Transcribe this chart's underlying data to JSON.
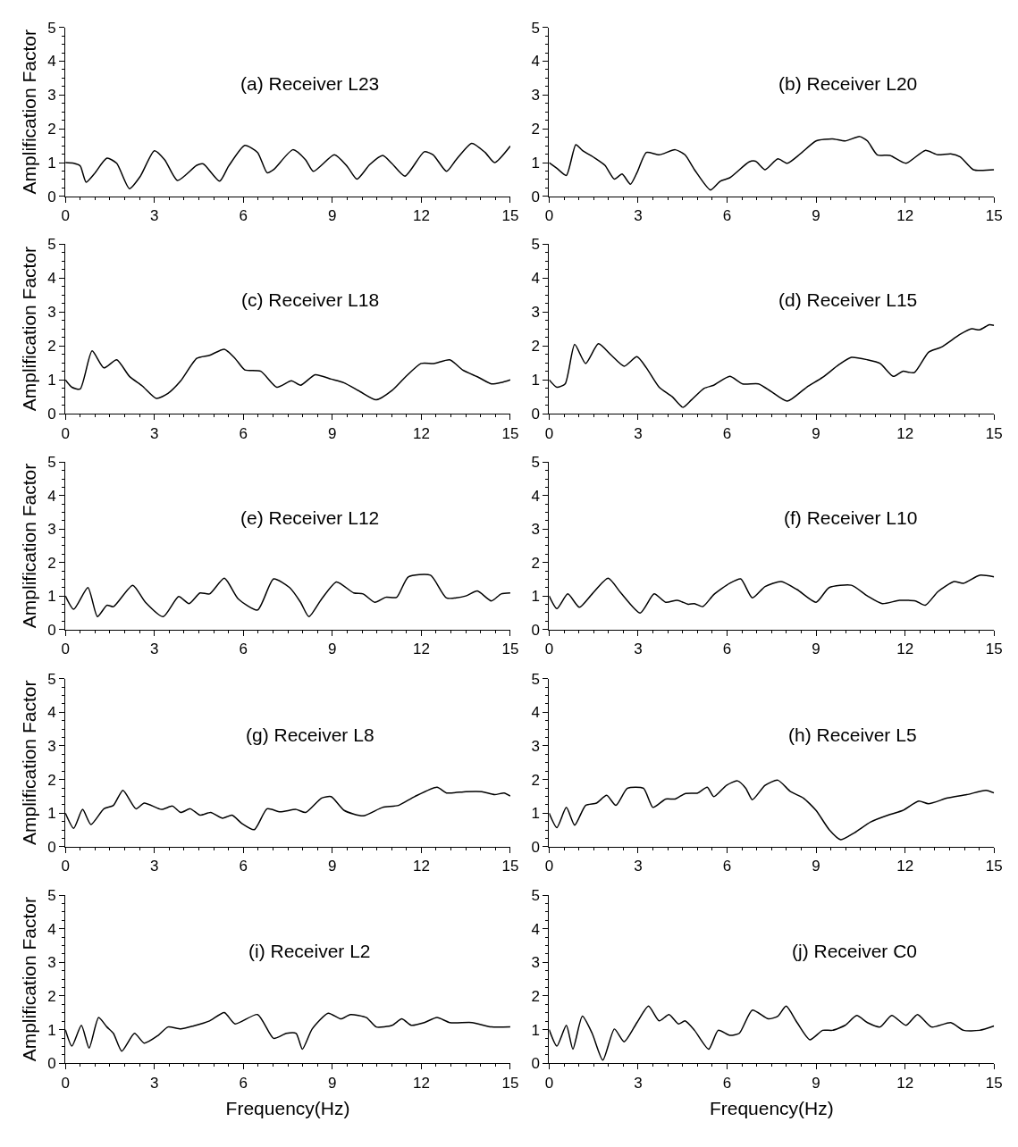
{
  "chart_data": [
    {
      "type": "line",
      "title": "(a) Receiver L23",
      "ylabel": "Amplification Factor",
      "color": "#000000",
      "xlim": [
        0,
        15
      ],
      "xticks": [
        0,
        3,
        6,
        9,
        12,
        15
      ],
      "ylim": [
        0,
        5
      ],
      "yticks": [
        0,
        1,
        2,
        3,
        4,
        5
      ],
      "x": [
        0,
        0.28,
        0.5,
        0.7,
        0.97,
        1.4,
        1.73,
        2.16,
        2.53,
        3.0,
        3.35,
        3.78,
        4.43,
        4.65,
        5.2,
        5.5,
        6.05,
        6.48,
        6.8,
        7.02,
        7.67,
        8.1,
        8.36,
        9.07,
        9.5,
        9.83,
        10.26,
        10.7,
        11.0,
        11.45,
        12.1,
        12.4,
        12.85,
        13.17,
        13.7,
        14.15,
        14.47,
        15
      ],
      "values": [
        1.0,
        0.98,
        0.9,
        0.42,
        0.66,
        1.13,
        0.98,
        0.23,
        0.6,
        1.35,
        1.08,
        0.47,
        0.92,
        0.96,
        0.45,
        0.89,
        1.51,
        1.3,
        0.7,
        0.79,
        1.38,
        1.08,
        0.74,
        1.23,
        0.89,
        0.51,
        0.94,
        1.21,
        0.98,
        0.6,
        1.32,
        1.23,
        0.74,
        1.08,
        1.57,
        1.3,
        1.0,
        1.49
      ]
    },
    {
      "type": "line",
      "title": "(b) Receiver L20",
      "color": "#000000",
      "xlim": [
        0,
        15
      ],
      "xticks": [
        0,
        3,
        6,
        9,
        12,
        15
      ],
      "ylim": [
        0,
        5
      ],
      "yticks": [
        0,
        1,
        2,
        3,
        4,
        5
      ],
      "x": [
        0,
        0.26,
        0.58,
        0.9,
        1.12,
        1.55,
        1.88,
        2.2,
        2.46,
        2.74,
        2.96,
        3.28,
        3.71,
        4.25,
        4.58,
        4.9,
        5.44,
        5.77,
        6.09,
        6.74,
        6.96,
        7.28,
        7.71,
        8.03,
        8.47,
        9.0,
        9.55,
        9.98,
        10.47,
        10.73,
        11.06,
        11.49,
        12.03,
        12.68,
        13.1,
        13.54,
        13.86,
        14.3,
        15
      ],
      "values": [
        1.0,
        0.83,
        0.62,
        1.53,
        1.36,
        1.13,
        0.92,
        0.51,
        0.66,
        0.36,
        0.7,
        1.3,
        1.23,
        1.38,
        1.23,
        0.79,
        0.19,
        0.45,
        0.55,
        1.02,
        1.04,
        0.79,
        1.11,
        0.98,
        1.26,
        1.64,
        1.7,
        1.64,
        1.77,
        1.64,
        1.23,
        1.21,
        0.98,
        1.36,
        1.23,
        1.26,
        1.17,
        0.79,
        0.79
      ]
    },
    {
      "type": "line",
      "title": "(c) Receiver L18",
      "ylabel": "Amplification Factor",
      "color": "#000000",
      "xlim": [
        0,
        15
      ],
      "xticks": [
        0,
        3,
        6,
        9,
        12,
        15
      ],
      "ylim": [
        0,
        5
      ],
      "yticks": [
        0,
        1,
        2,
        3,
        4,
        5
      ],
      "x": [
        0,
        0.22,
        0.5,
        0.9,
        1.3,
        1.73,
        2.16,
        2.59,
        3.07,
        3.46,
        3.89,
        4.43,
        4.86,
        5.36,
        5.72,
        6.05,
        6.59,
        7.13,
        7.62,
        7.93,
        8.42,
        8.96,
        9.4,
        9.94,
        10.48,
        11.02,
        11.45,
        11.99,
        12.42,
        12.96,
        13.39,
        13.93,
        14.36,
        14.69,
        15
      ],
      "values": [
        1.0,
        0.78,
        0.73,
        1.85,
        1.35,
        1.59,
        1.1,
        0.82,
        0.45,
        0.6,
        0.97,
        1.63,
        1.72,
        1.9,
        1.63,
        1.29,
        1.25,
        0.78,
        0.97,
        0.84,
        1.15,
        1.02,
        0.91,
        0.65,
        0.41,
        0.69,
        1.07,
        1.48,
        1.48,
        1.59,
        1.29,
        1.07,
        0.88,
        0.92,
        1.0
      ]
    },
    {
      "type": "line",
      "title": "(d) Receiver L15",
      "color": "#000000",
      "xlim": [
        0,
        15
      ],
      "xticks": [
        0,
        3,
        6,
        9,
        12,
        15
      ],
      "ylim": [
        0,
        5
      ],
      "yticks": [
        0,
        1,
        2,
        3,
        4,
        5
      ],
      "x": [
        0,
        0.26,
        0.54,
        0.86,
        1.23,
        1.66,
        2.1,
        2.53,
        2.96,
        3.28,
        3.71,
        4.15,
        4.51,
        4.8,
        5.23,
        5.55,
        6.09,
        6.52,
        7.06,
        7.49,
        8.03,
        8.68,
        9.22,
        9.76,
        10.19,
        10.73,
        11.16,
        11.6,
        11.92,
        12.31,
        12.79,
        13.22,
        13.86,
        14.25,
        14.51,
        14.84,
        15
      ],
      "values": [
        1.0,
        0.78,
        0.88,
        2.04,
        1.48,
        2.06,
        1.72,
        1.4,
        1.68,
        1.35,
        0.78,
        0.5,
        0.19,
        0.41,
        0.75,
        0.84,
        1.1,
        0.88,
        0.88,
        0.65,
        0.37,
        0.78,
        1.07,
        1.44,
        1.66,
        1.59,
        1.48,
        1.1,
        1.25,
        1.21,
        1.81,
        1.96,
        2.34,
        2.5,
        2.47,
        2.62,
        2.6
      ]
    },
    {
      "type": "line",
      "title": "(e) Receiver L12",
      "ylabel": "Amplification Factor",
      "color": "#000000",
      "xlim": [
        0,
        15
      ],
      "xticks": [
        0,
        3,
        6,
        9,
        12,
        15
      ],
      "ylim": [
        0,
        5
      ],
      "yticks": [
        0,
        1,
        2,
        3,
        4,
        5
      ],
      "x": [
        0,
        0.28,
        0.76,
        1.08,
        1.4,
        1.62,
        2.27,
        2.7,
        3.3,
        3.82,
        4.17,
        4.54,
        4.86,
        5.36,
        5.83,
        6.48,
        7.02,
        7.56,
        7.93,
        8.21,
        8.64,
        9.14,
        9.72,
        10.04,
        10.43,
        10.8,
        11.17,
        11.56,
        12.31,
        12.85,
        13.5,
        13.89,
        14.36,
        14.69,
        15
      ],
      "values": [
        1.0,
        0.6,
        1.25,
        0.38,
        0.72,
        0.68,
        1.32,
        0.81,
        0.38,
        0.98,
        0.77,
        1.09,
        1.06,
        1.53,
        0.91,
        0.58,
        1.51,
        1.25,
        0.81,
        0.38,
        0.91,
        1.42,
        1.09,
        1.06,
        0.81,
        0.96,
        0.96,
        1.57,
        1.62,
        0.94,
        1.0,
        1.15,
        0.85,
        1.06,
        1.09
      ]
    },
    {
      "type": "line",
      "title": "(f) Receiver L10",
      "color": "#000000",
      "xlim": [
        0,
        15
      ],
      "xticks": [
        0,
        3,
        6,
        9,
        12,
        15
      ],
      "ylim": [
        0,
        5
      ],
      "yticks": [
        0,
        1,
        2,
        3,
        4,
        5
      ],
      "x": [
        0,
        0.26,
        0.63,
        1.02,
        1.45,
        1.99,
        2.42,
        3.07,
        3.54,
        3.93,
        4.32,
        4.69,
        4.9,
        5.18,
        5.55,
        6.09,
        6.46,
        6.85,
        7.28,
        7.82,
        8.36,
        9.0,
        9.44,
        10.19,
        10.73,
        11.23,
        11.81,
        12.35,
        12.68,
        13.11,
        13.65,
        13.97,
        14.51,
        15
      ],
      "values": [
        1.0,
        0.62,
        1.06,
        0.66,
        1.06,
        1.53,
        1.09,
        0.49,
        1.06,
        0.81,
        0.87,
        0.75,
        0.77,
        0.68,
        1.04,
        1.38,
        1.51,
        0.94,
        1.28,
        1.43,
        1.19,
        0.81,
        1.25,
        1.32,
        1.0,
        0.77,
        0.87,
        0.85,
        0.72,
        1.13,
        1.43,
        1.38,
        1.62,
        1.57
      ]
    },
    {
      "type": "line",
      "title": "(g) Receiver L8",
      "ylabel": "Amplification Factor",
      "color": "#000000",
      "xlim": [
        0,
        15
      ],
      "xticks": [
        0,
        3,
        6,
        9,
        12,
        15
      ],
      "ylim": [
        0,
        5
      ],
      "yticks": [
        0,
        1,
        2,
        3,
        4,
        5
      ],
      "x": [
        0,
        0.28,
        0.58,
        0.86,
        1.3,
        1.62,
        1.94,
        2.38,
        2.66,
        3.24,
        3.61,
        3.89,
        4.21,
        4.54,
        4.9,
        5.29,
        5.62,
        5.94,
        6.37,
        6.8,
        7.24,
        7.78,
        8.1,
        8.64,
        8.96,
        9.4,
        10.04,
        10.69,
        11.23,
        11.77,
        12.53,
        12.85,
        13.5,
        14.04,
        14.47,
        14.79,
        15
      ],
      "values": [
        1.0,
        0.55,
        1.11,
        0.66,
        1.13,
        1.23,
        1.68,
        1.13,
        1.3,
        1.11,
        1.21,
        1.02,
        1.13,
        0.94,
        1.02,
        0.85,
        0.94,
        0.7,
        0.51,
        1.13,
        1.04,
        1.11,
        1.02,
        1.45,
        1.49,
        1.08,
        0.92,
        1.17,
        1.23,
        1.49,
        1.77,
        1.6,
        1.64,
        1.64,
        1.55,
        1.6,
        1.51
      ]
    },
    {
      "type": "line",
      "title": "(h) Receiver L5",
      "color": "#000000",
      "xlim": [
        0,
        15
      ],
      "xticks": [
        0,
        3,
        6,
        9,
        12,
        15
      ],
      "ylim": [
        0,
        5
      ],
      "yticks": [
        0,
        1,
        2,
        3,
        4,
        5
      ],
      "x": [
        0,
        0.26,
        0.58,
        0.86,
        1.23,
        1.6,
        1.94,
        2.25,
        2.64,
        3.18,
        3.5,
        3.93,
        4.25,
        4.58,
        5.01,
        5.33,
        5.55,
        5.98,
        6.35,
        6.63,
        6.85,
        7.28,
        7.71,
        8.14,
        8.57,
        9.0,
        9.44,
        9.83,
        10.3,
        10.84,
        11.49,
        11.92,
        12.46,
        12.79,
        13.43,
        14.08,
        14.73,
        15
      ],
      "values": [
        1.0,
        0.57,
        1.17,
        0.64,
        1.23,
        1.3,
        1.53,
        1.23,
        1.74,
        1.74,
        1.17,
        1.42,
        1.42,
        1.58,
        1.6,
        1.77,
        1.49,
        1.83,
        1.96,
        1.74,
        1.4,
        1.83,
        1.98,
        1.64,
        1.45,
        1.08,
        0.51,
        0.21,
        0.42,
        0.74,
        0.96,
        1.08,
        1.36,
        1.28,
        1.45,
        1.55,
        1.68,
        1.6
      ]
    },
    {
      "type": "line",
      "title": "(i) Receiver L2",
      "ylabel": "Amplification Factor",
      "xlabel": "Frequency(Hz)",
      "color": "#000000",
      "xlim": [
        0,
        15
      ],
      "xticks": [
        0,
        3,
        6,
        9,
        12,
        15
      ],
      "ylim": [
        0,
        5
      ],
      "yticks": [
        0,
        1,
        2,
        3,
        4,
        5
      ],
      "x": [
        0,
        0.22,
        0.54,
        0.8,
        1.12,
        1.4,
        1.62,
        1.9,
        2.33,
        2.66,
        3.13,
        3.46,
        3.89,
        4.32,
        4.86,
        5.36,
        5.72,
        6.48,
        7.02,
        7.45,
        7.78,
        7.99,
        8.32,
        8.86,
        9.29,
        9.61,
        10.15,
        10.48,
        11.02,
        11.34,
        11.66,
        12.1,
        12.53,
        12.96,
        13.71,
        14.36,
        15
      ],
      "values": [
        1.0,
        0.51,
        1.13,
        0.45,
        1.36,
        1.08,
        0.89,
        0.36,
        0.89,
        0.6,
        0.83,
        1.08,
        1.02,
        1.11,
        1.26,
        1.51,
        1.17,
        1.45,
        0.74,
        0.89,
        0.89,
        0.42,
        1.02,
        1.49,
        1.32,
        1.45,
        1.36,
        1.08,
        1.13,
        1.32,
        1.13,
        1.21,
        1.36,
        1.21,
        1.21,
        1.08,
        1.08
      ]
    },
    {
      "type": "line",
      "title": "(j) Receiver C0",
      "xlabel": "Frequency(Hz)",
      "color": "#000000",
      "xlim": [
        0,
        15
      ],
      "xticks": [
        0,
        3,
        6,
        9,
        12,
        15
      ],
      "ylim": [
        0,
        5
      ],
      "yticks": [
        0,
        1,
        2,
        3,
        4,
        5
      ],
      "x": [
        0,
        0.26,
        0.58,
        0.8,
        1.12,
        1.45,
        1.81,
        2.2,
        2.53,
        2.96,
        3.35,
        3.71,
        4.04,
        4.36,
        4.58,
        4.9,
        5.38,
        5.7,
        6.09,
        6.41,
        6.85,
        7.39,
        7.71,
        7.99,
        8.36,
        8.79,
        9.22,
        9.55,
        9.98,
        10.37,
        10.73,
        11.16,
        11.55,
        12.03,
        12.42,
        12.89,
        13.54,
        13.97,
        14.51,
        15
      ],
      "values": [
        1.0,
        0.51,
        1.13,
        0.42,
        1.4,
        0.89,
        0.09,
        1.02,
        0.64,
        1.21,
        1.7,
        1.26,
        1.45,
        1.17,
        1.26,
        0.98,
        0.42,
        0.98,
        0.83,
        0.89,
        1.58,
        1.32,
        1.4,
        1.7,
        1.21,
        0.7,
        0.98,
        0.98,
        1.13,
        1.42,
        1.21,
        1.08,
        1.42,
        1.13,
        1.45,
        1.08,
        1.21,
        0.98,
        0.98,
        1.11
      ]
    }
  ]
}
